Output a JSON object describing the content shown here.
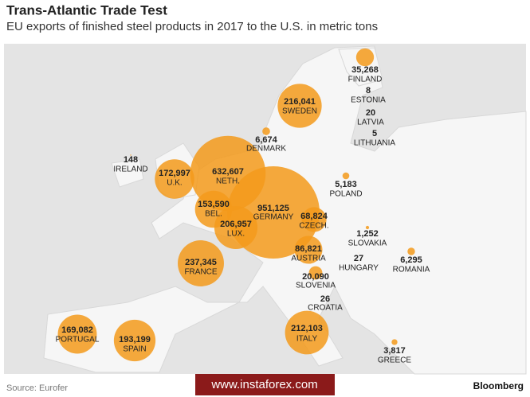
{
  "header": {
    "title": "Trans-Atlantic Trade Test",
    "subtitle": "EU exports of finished steel products in 2017 to the U.S. in metric tons"
  },
  "map": {
    "type": "bubble-map",
    "color": "#f39a1b",
    "countries": [
      {
        "name": "FINLAND",
        "value": 35268,
        "value_label": "35,268"
      },
      {
        "name": "ESTONIA",
        "value": 8,
        "value_label": "8"
      },
      {
        "name": "LATVIA",
        "value": 20,
        "value_label": "20"
      },
      {
        "name": "LITHUANIA",
        "value": 5,
        "value_label": "5"
      },
      {
        "name": "SWEDEN",
        "value": 216041,
        "value_label": "216,041"
      },
      {
        "name": "DENMARK",
        "value": 6674,
        "value_label": "6,674"
      },
      {
        "name": "IRELAND",
        "value": 148,
        "value_label": "148"
      },
      {
        "name": "U.K.",
        "value": 172997,
        "value_label": "172,997"
      },
      {
        "name": "NETH.",
        "value": 632607,
        "value_label": "632,607"
      },
      {
        "name": "GERMANY",
        "value": 951125,
        "value_label": "951,125"
      },
      {
        "name": "BEL.",
        "value": 153590,
        "value_label": "153,590"
      },
      {
        "name": "LUX.",
        "value": 206957,
        "value_label": "206,957"
      },
      {
        "name": "CZECH.",
        "value": 68824,
        "value_label": "68,824"
      },
      {
        "name": "POLAND",
        "value": 5183,
        "value_label": "5,183"
      },
      {
        "name": "SLOVAKIA",
        "value": 1252,
        "value_label": "1,252"
      },
      {
        "name": "AUSTRIA",
        "value": 86821,
        "value_label": "86,821"
      },
      {
        "name": "HUNGARY",
        "value": 27,
        "value_label": "27"
      },
      {
        "name": "ROMANIA",
        "value": 6295,
        "value_label": "6,295"
      },
      {
        "name": "SLOVENIA",
        "value": 20090,
        "value_label": "20,090"
      },
      {
        "name": "CROATIA",
        "value": 26,
        "value_label": "26"
      },
      {
        "name": "FRANCE",
        "value": 237345,
        "value_label": "237,345"
      },
      {
        "name": "ITALY",
        "value": 212103,
        "value_label": "212,103"
      },
      {
        "name": "PORTUGAL",
        "value": 169082,
        "value_label": "169,082"
      },
      {
        "name": "SPAIN",
        "value": 193199,
        "value_label": "193,199"
      },
      {
        "name": "GREECE",
        "value": 3817,
        "value_label": "3,817"
      }
    ]
  },
  "footer": {
    "source": "Source: Eurofer",
    "brand": "Bloomberg",
    "watermark": "www.instaforex.com"
  }
}
